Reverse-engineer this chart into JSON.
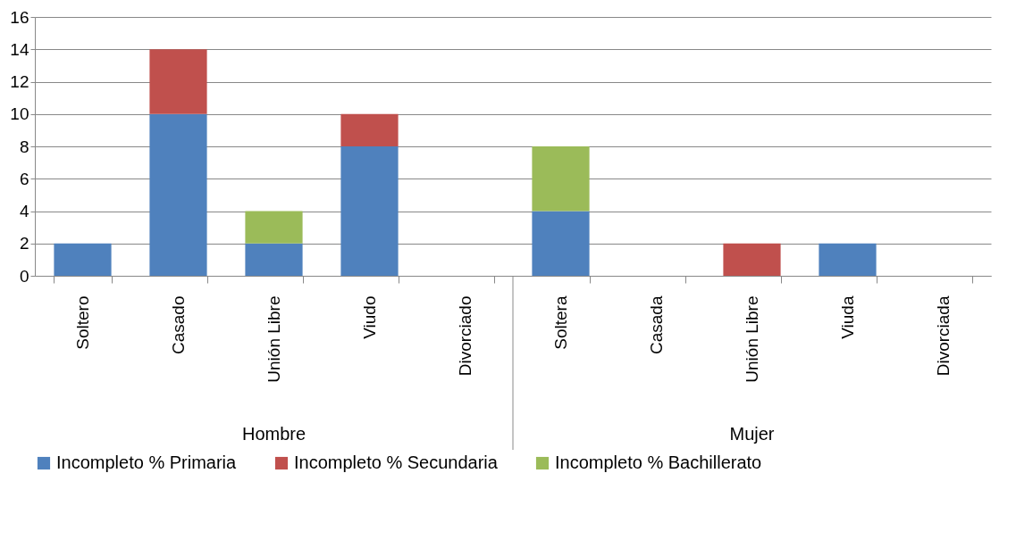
{
  "chart_data": {
    "type": "bar",
    "stacked": true,
    "categories": [
      "Soltero",
      "Casado",
      "Unión Libre",
      "Viudo",
      "Divorciado",
      "Soltera",
      "Casada",
      "Unión Libre",
      "Viuda",
      "Divorciada"
    ],
    "series": [
      {
        "name": "Incompleto % Primaria",
        "color": "#4f81bd",
        "values": [
          2,
          10,
          2,
          8,
          0,
          4,
          0,
          0,
          2,
          0
        ]
      },
      {
        "name": "Incompleto % Secundaria",
        "color": "#c0504d",
        "values": [
          0,
          4,
          0,
          2,
          0,
          0,
          0,
          2,
          0,
          0
        ]
      },
      {
        "name": "Incompleto %  Bachillerato",
        "color": "#9bbb59",
        "values": [
          0,
          0,
          2,
          0,
          0,
          4,
          0,
          0,
          0,
          0
        ]
      }
    ],
    "annotations": [
      "Hombre",
      "Mujer"
    ],
    "ylim": [
      0,
      16
    ],
    "yticks": [
      0,
      2,
      4,
      6,
      8,
      10,
      12,
      14,
      16
    ],
    "grid": "y",
    "legend": "bottom"
  }
}
